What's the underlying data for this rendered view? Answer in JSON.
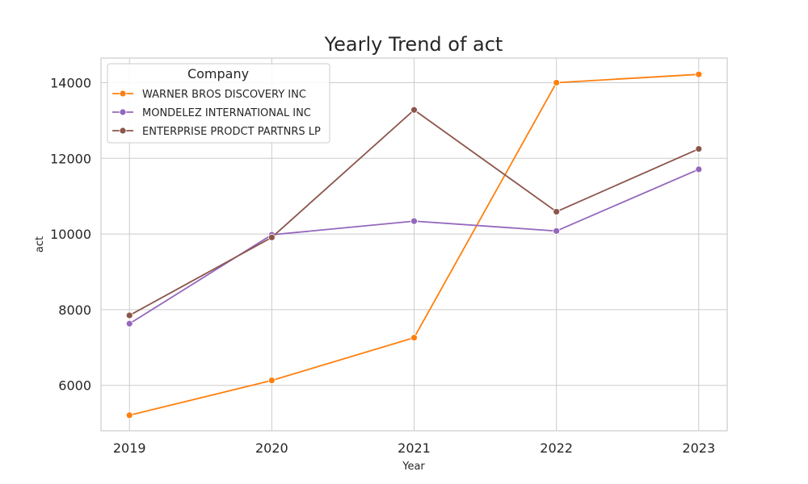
{
  "chart_data": {
    "type": "line",
    "title": "Yearly Trend of act",
    "xlabel": "Year",
    "ylabel": "act",
    "x": [
      "2019",
      "2020",
      "2021",
      "2022",
      "2023"
    ],
    "xlim": [
      2018.8,
      2023.2
    ],
    "ylim": [
      4800,
      14650
    ],
    "yticks": [
      6000,
      8000,
      10000,
      12000,
      14000
    ],
    "grid": true,
    "legend": {
      "title": "Company",
      "placement": "top-left"
    },
    "series": [
      {
        "name": "WARNER BROS DISCOVERY INC",
        "color": "#ff7f0e",
        "values": [
          5210,
          6130,
          7260,
          14000,
          14220
        ]
      },
      {
        "name": "MONDELEZ INTERNATIONAL INC",
        "color": "#9467bd",
        "values": [
          7630,
          9980,
          10340,
          10080,
          11710
        ]
      },
      {
        "name": "ENTERPRISE PRODCT PARTNRS LP",
        "color": "#8c564b",
        "values": [
          7850,
          9910,
          13280,
          10590,
          12250
        ]
      }
    ]
  }
}
